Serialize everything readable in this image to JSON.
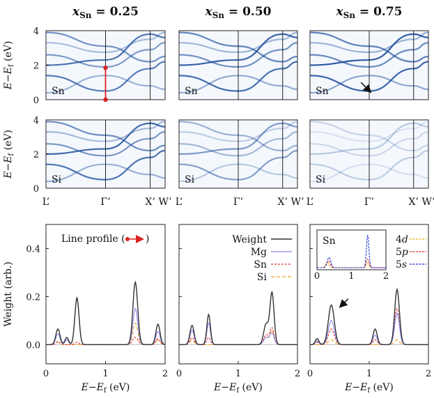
{
  "chart_data": {
    "type": "line",
    "figure_title_parts": {
      "var": "x",
      "sub": "Sn",
      "eq": " = "
    },
    "columns": [
      {
        "x_sn": "0.25",
        "title": "x_Sn = 0.25"
      },
      {
        "x_sn": "0.50",
        "title": "x_Sn = 0.50"
      },
      {
        "x_sn": "0.75",
        "title": "x_Sn = 0.75"
      }
    ],
    "band_panels": {
      "ylabel": "E−E_f (eV)",
      "ylabel_parts": {
        "a": "E",
        "minus": "−",
        "b": "E",
        "sub": "f",
        "unit": " (eV)"
      },
      "ylim": [
        0,
        4
      ],
      "yticks": [
        "0",
        "2",
        "4"
      ],
      "kpath_labels": [
        "L’",
        "Γ’",
        "X’",
        "W’"
      ],
      "kpath_positions": [
        0,
        1,
        1.75,
        2
      ],
      "rows": [
        {
          "element": "Sn",
          "intensity": [
            0.85,
            0.95,
            1.0
          ]
        },
        {
          "element": "Si",
          "intensity": [
            0.9,
            0.6,
            0.3
          ]
        }
      ],
      "bands": [
        {
          "label": "b1",
          "points": [
            [
              0,
              3.3
            ],
            [
              1,
              2.75
            ],
            [
              1.75,
              3.5
            ],
            [
              2,
              3.9
            ]
          ]
        },
        {
          "label": "b2",
          "points": [
            [
              0,
              2.6
            ],
            [
              1,
              1.9
            ],
            [
              1.75,
              2.9
            ],
            [
              2,
              3.3
            ]
          ]
        },
        {
          "label": "b3",
          "points": [
            [
              0,
              1.4
            ],
            [
              1,
              0.5
            ],
            [
              1.75,
              1.8
            ],
            [
              2,
              2.2
            ]
          ]
        },
        {
          "label": "b4",
          "points": [
            [
              0,
              0.4
            ],
            [
              1,
              1.4
            ],
            [
              1.75,
              0.8
            ],
            [
              2,
              0.6
            ]
          ]
        },
        {
          "label": "b5",
          "points": [
            [
              0,
              3.9
            ],
            [
              1,
              3.1
            ],
            [
              1.75,
              2.2
            ],
            [
              2,
              2.5
            ]
          ]
        },
        {
          "label": "b6",
          "points": [
            [
              0,
              2.0
            ],
            [
              1,
              2.3
            ],
            [
              1.75,
              3.8
            ],
            [
              2,
              3.6
            ]
          ]
        }
      ],
      "line_profile_marker": {
        "column": 0,
        "row": 0,
        "k": 1,
        "e_from": 0,
        "e_to": 1.85
      },
      "arrow_annotation": {
        "column": 2,
        "row": 0,
        "k": 1.05,
        "e": 0.35
      }
    },
    "weight_panels": {
      "xlabel": "E−E_f (eV)",
      "ylabel": "Weight (arb.)",
      "xlim": [
        0,
        2
      ],
      "ylim": [
        -0.08,
        0.5
      ],
      "xticks": [
        "0",
        "1",
        "2"
      ],
      "yticks": [
        "0.0",
        "0.2",
        "0.4"
      ],
      "line_profile_label": "Line profile (",
      "line_profile_close": ")",
      "series_meta": [
        {
          "name": "Weight",
          "color": "#333333",
          "dash": ""
        },
        {
          "name": "Mg",
          "color": "#8888ee",
          "dash": ""
        },
        {
          "name": "Sn",
          "color": "#e03030",
          "dash": "3,2"
        },
        {
          "name": "Si",
          "color": "#f0a020",
          "dash": "5,3"
        }
      ],
      "panels": [
        {
          "x_sn": "0.25",
          "peaks": {
            "Weight": [
              [
                0.2,
                0.065,
                0.035
              ],
              [
                0.35,
                0.03,
                0.03
              ],
              [
                0.52,
                0.195,
                0.035
              ],
              [
                1.5,
                0.26,
                0.04
              ],
              [
                1.88,
                0.085,
                0.035
              ]
            ],
            "Mg": [
              [
                0.2,
                0.045,
                0.035
              ],
              [
                0.35,
                0.02,
                0.03
              ],
              [
                0.52,
                0.19,
                0.035
              ],
              [
                1.5,
                0.15,
                0.04
              ],
              [
                1.88,
                0.055,
                0.035
              ]
            ],
            "Sn": [
              [
                0.2,
                0.012,
                0.035
              ],
              [
                0.52,
                0.01,
                0.035
              ],
              [
                1.5,
                0.03,
                0.045
              ],
              [
                1.88,
                0.025,
                0.035
              ]
            ],
            "Si": [
              [
                0.2,
                0.012,
                0.035
              ],
              [
                1.5,
                0.09,
                0.04
              ],
              [
                1.88,
                0.02,
                0.035
              ]
            ]
          }
        },
        {
          "x_sn": "0.50",
          "peaks": {
            "Weight": [
              [
                0.22,
                0.08,
                0.035
              ],
              [
                0.5,
                0.125,
                0.03
              ],
              [
                1.47,
                0.085,
                0.04
              ],
              [
                1.57,
                0.215,
                0.035
              ]
            ],
            "Mg": [
              [
                0.22,
                0.06,
                0.035
              ],
              [
                0.5,
                0.09,
                0.03
              ],
              [
                1.47,
                0.03,
                0.04
              ],
              [
                1.57,
                0.05,
                0.035
              ]
            ],
            "Sn": [
              [
                0.22,
                0.03,
                0.035
              ],
              [
                0.5,
                0.03,
                0.03
              ],
              [
                1.47,
                0.04,
                0.04
              ],
              [
                1.57,
                0.07,
                0.035
              ]
            ],
            "Si": [
              [
                0.22,
                0.02,
                0.035
              ],
              [
                1.47,
                0.03,
                0.04
              ],
              [
                1.57,
                0.06,
                0.035
              ]
            ]
          }
        },
        {
          "x_sn": "0.75",
          "peaks": {
            "Weight": [
              [
                0.12,
                0.025,
                0.03
              ],
              [
                0.36,
                0.165,
                0.05
              ],
              [
                1.1,
                0.065,
                0.035
              ],
              [
                1.47,
                0.23,
                0.04
              ]
            ],
            "Mg": [
              [
                0.12,
                0.015,
                0.03
              ],
              [
                0.36,
                0.1,
                0.05
              ],
              [
                1.1,
                0.04,
                0.035
              ],
              [
                1.47,
                0.13,
                0.04
              ]
            ],
            "Sn": [
              [
                0.12,
                0.01,
                0.03
              ],
              [
                0.36,
                0.065,
                0.05
              ],
              [
                1.1,
                0.02,
                0.035
              ],
              [
                1.47,
                0.15,
                0.04
              ]
            ],
            "Si": [
              [
                0.36,
                0.02,
                0.05
              ],
              [
                1.47,
                0.02,
                0.04
              ]
            ]
          },
          "arrow_annotation": {
            "e": 0.48,
            "w": 0.15
          }
        }
      ],
      "inset": {
        "title": "Sn",
        "xlim": [
          0,
          2
        ],
        "xticks": [
          "0",
          "1",
          "2"
        ],
        "ylim": [
          0,
          1
        ],
        "series": [
          {
            "name": "4d",
            "italic_part": "d",
            "num_part": "4",
            "color": "#e8b020",
            "peaks": [
              [
                0.3,
                0.15,
                0.05
              ],
              [
                1.47,
                0.12,
                0.04
              ]
            ]
          },
          {
            "name": "5p",
            "italic_part": "p",
            "num_part": "5",
            "color": "#e03030",
            "peaks": [
              [
                0.33,
                0.2,
                0.05
              ],
              [
                1.47,
                0.25,
                0.04
              ]
            ]
          },
          {
            "name": "5s",
            "italic_part": "s",
            "num_part": "5",
            "color": "#2030d0",
            "peaks": [
              [
                0.35,
                0.3,
                0.05
              ],
              [
                1.47,
                0.95,
                0.035
              ]
            ]
          }
        ]
      }
    }
  }
}
